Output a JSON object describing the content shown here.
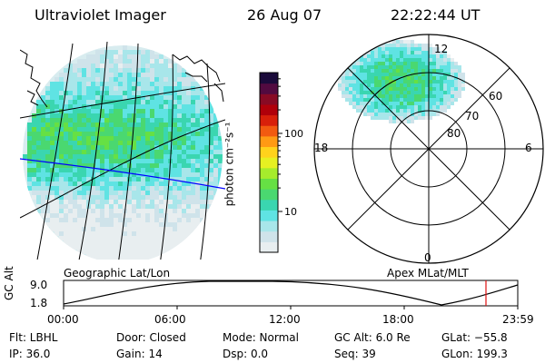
{
  "header": {
    "instrument": "Ultraviolet Imager",
    "date": "26 Aug 07",
    "time": "22:22:44 UT"
  },
  "geo_map": {
    "label": "Geographic Lat/Lon",
    "aurora_color": "#4fe06a",
    "track_color": "#0000ff",
    "coast_color": "#000000"
  },
  "colorbar": {
    "title": "photon cm⁻²s⁻¹",
    "ticks": [
      {
        "label": "100",
        "value": 100
      },
      {
        "label": "10",
        "value": 10
      }
    ],
    "scale": "log",
    "colors": [
      "#e8eef0",
      "#cfe3ea",
      "#a8e6ea",
      "#5fe3e3",
      "#3ad6b0",
      "#4ad870",
      "#66e044",
      "#a6ec2c",
      "#e6f022",
      "#ffd21c",
      "#ff9a14",
      "#f25a10",
      "#d8200a",
      "#b0000a",
      "#880a24",
      "#520a40",
      "#1a0a3a"
    ]
  },
  "polar_plot": {
    "label": "Apex MLat/MLT",
    "mlt_labels": [
      {
        "text": "12",
        "pos": "top"
      },
      {
        "text": "18",
        "pos": "left"
      },
      {
        "text": "6",
        "pos": "right"
      },
      {
        "text": "0",
        "pos": "bottom"
      }
    ],
    "lat_labels": [
      "60",
      "70",
      "80"
    ]
  },
  "altitude_track": {
    "axis_title": "GC Alt",
    "y_ticks": [
      "9.0",
      "1.8"
    ],
    "x_ticks": [
      "00:00",
      "06:00",
      "12:00",
      "18:00",
      "23:59"
    ],
    "current_time_marker": "22:22",
    "marker_color": "#e01010"
  },
  "status": {
    "filter": "Flt: LBHL",
    "ip": "IP: 36.0",
    "door": "Door: Closed",
    "gain": "Gain: 14",
    "mode": "Mode: Normal",
    "dsp": "Dsp:     0.0",
    "gc_alt": "GC Alt: 6.0 Re",
    "seq": "Seq: 39",
    "glat": "GLat: −55.8",
    "glon": "GLon: 199.3"
  }
}
